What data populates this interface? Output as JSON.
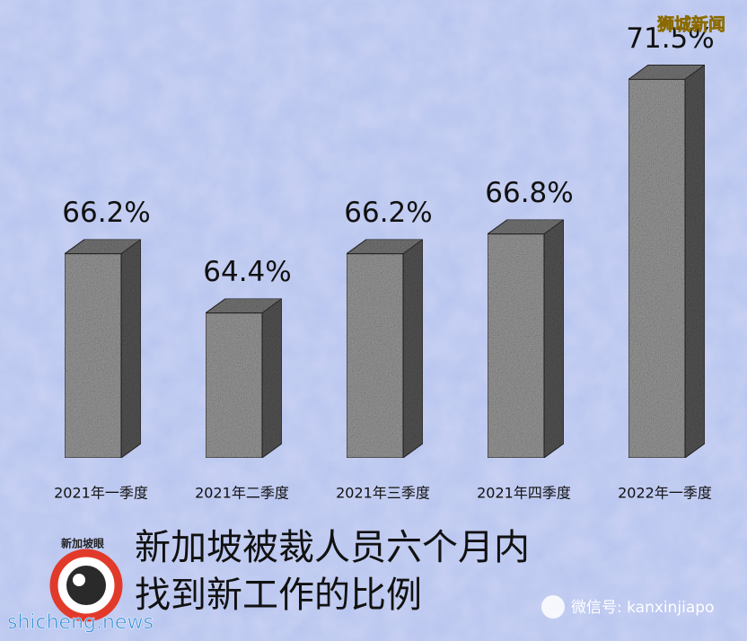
{
  "chart_data": {
    "type": "bar",
    "title": [
      "新加坡被裁人员六个月内",
      "找到新工作的比例"
    ],
    "watermark": "狮城新闻",
    "logo_text": "新加坡眼",
    "source": "shicheng.news",
    "wechat": "微信号: kanxinjiapo",
    "categories": [
      "2021年一季度",
      "2021年二季度",
      "2021年三季度",
      "2021年四季度",
      "2022年一季度"
    ],
    "values": [
      66.2,
      64.4,
      66.2,
      66.8,
      71.5
    ],
    "value_labels": [
      "66.2%",
      "64.4%",
      "66.2%",
      "66.8%",
      "71.5%"
    ],
    "color": "#9a9a9a",
    "ylim": [
      60,
      72
    ]
  }
}
